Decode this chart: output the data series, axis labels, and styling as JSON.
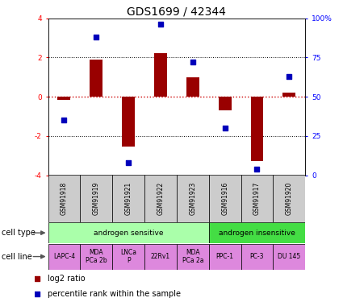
{
  "title": "GDS1699 / 42344",
  "samples": [
    "GSM91918",
    "GSM91919",
    "GSM91921",
    "GSM91922",
    "GSM91923",
    "GSM91916",
    "GSM91917",
    "GSM91920"
  ],
  "log2_ratio": [
    -0.15,
    1.9,
    -2.55,
    2.2,
    1.0,
    -0.7,
    -3.3,
    0.2
  ],
  "percentile_rank": [
    35,
    88,
    8,
    96,
    72,
    30,
    4,
    63
  ],
  "cell_type_groups": [
    {
      "label": "androgen sensitive",
      "start": 0,
      "end": 5,
      "color": "#aaffaa"
    },
    {
      "label": "androgen insensitive",
      "start": 5,
      "end": 8,
      "color": "#44dd44"
    }
  ],
  "cell_lines": [
    "LAPC-4",
    "MDA\nPCa 2b",
    "LNCa\nP",
    "22Rv1",
    "MDA\nPCa 2a",
    "PPC-1",
    "PC-3",
    "DU 145"
  ],
  "cell_line_color": "#dd88dd",
  "bar_color": "#990000",
  "dot_color": "#0000bb",
  "ylim": [
    -4,
    4
  ],
  "y2lim": [
    0,
    100
  ],
  "yticks": [
    -4,
    -2,
    0,
    2,
    4
  ],
  "y2ticks": [
    0,
    25,
    50,
    75,
    100
  ],
  "dotted_lines": [
    -2,
    2
  ],
  "zero_line_color": "#cc0000",
  "background_color": "#ffffff",
  "title_fontsize": 10,
  "tick_fontsize": 6.5,
  "sample_fontsize": 5.5,
  "cell_fontsize": 6.5,
  "legend_fontsize": 7,
  "label_row_fontsize": 7
}
